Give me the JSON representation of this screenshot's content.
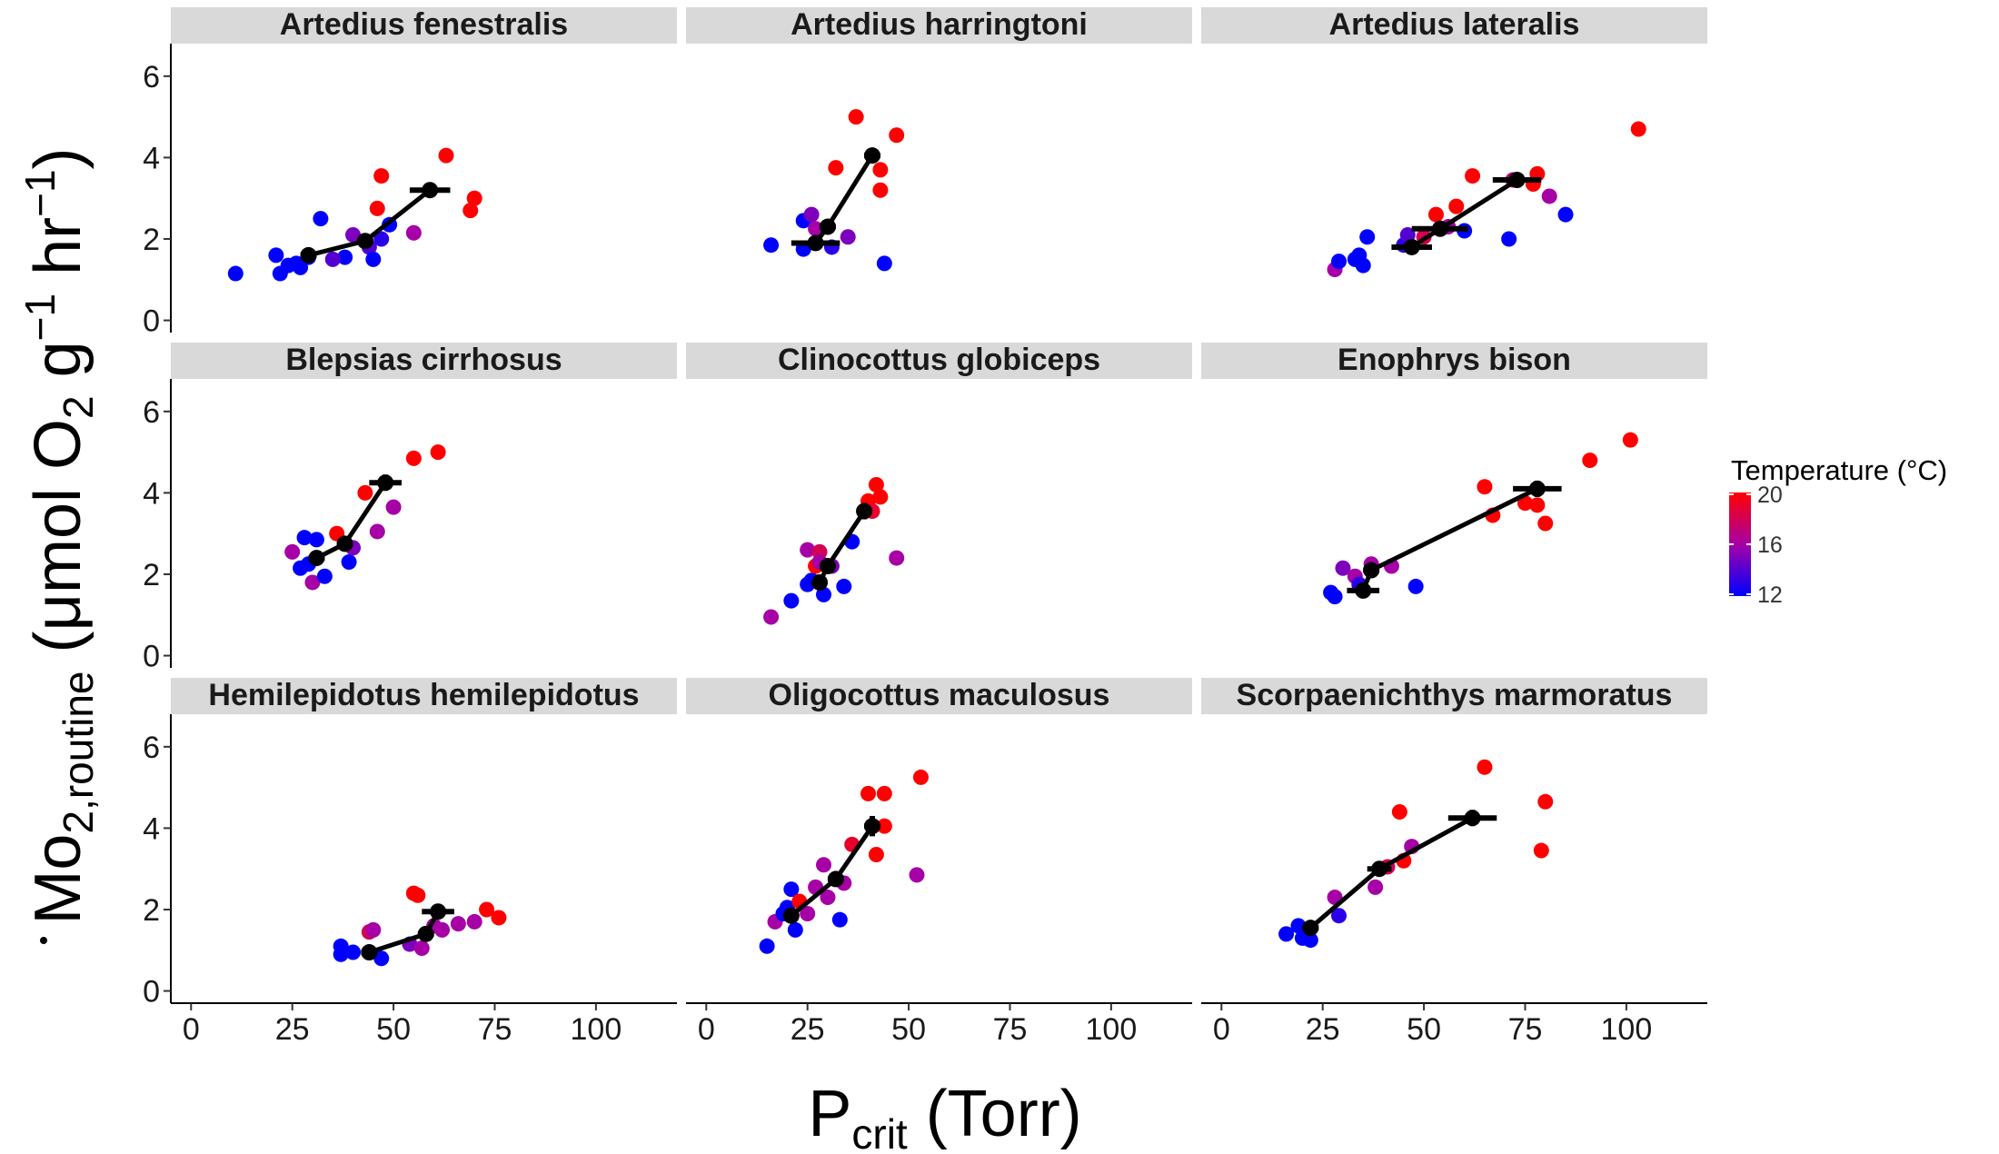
{
  "chart_data": {
    "type": "scatter",
    "facet_layout": "3x3",
    "xlabel_main": "P",
    "xlabel_sub": "crit",
    "xlabel_rest": " (Torr)",
    "ylabel_main": "Mo",
    "ylabel_sub": "2,routine",
    "ylabel_rest": " (μmol O",
    "ylabel_sub2": "2",
    "ylabel_rest2": " g",
    "ylabel_sup1": "−1",
    "ylabel_rest3": " hr",
    "ylabel_sup2": "−1",
    "ylabel_rest4": ")",
    "xlim": [
      -5,
      120
    ],
    "ylim": [
      -0.3,
      6.8
    ],
    "xticks": [
      0,
      25,
      50,
      75,
      100
    ],
    "yticks": [
      0,
      2,
      4,
      6
    ],
    "legend": {
      "title": "Temperature (°C)",
      "range": [
        12,
        20
      ],
      "ticks": [
        20,
        16,
        12
      ],
      "low_color": "#0000ff",
      "high_color": "#ff0000",
      "position": "right"
    },
    "colors": {
      "strip_bg": "#d9d9d9",
      "mean_marker": "#000000"
    },
    "panels": [
      {
        "name": "Artedius fenestralis",
        "points": [
          [
            11,
            1.15,
            12
          ],
          [
            21,
            1.6,
            12
          ],
          [
            22,
            1.15,
            12
          ],
          [
            24,
            1.35,
            12
          ],
          [
            26,
            1.4,
            12
          ],
          [
            27,
            1.3,
            12
          ],
          [
            29,
            1.55,
            12
          ],
          [
            32,
            2.5,
            12
          ],
          [
            38,
            1.55,
            12
          ],
          [
            35,
            1.5,
            14
          ],
          [
            40,
            2.1,
            15
          ],
          [
            44,
            1.8,
            14
          ],
          [
            45,
            1.5,
            12
          ],
          [
            47,
            2.0,
            13
          ],
          [
            49,
            2.35,
            12
          ],
          [
            46,
            2.75,
            20
          ],
          [
            47,
            3.55,
            20
          ],
          [
            55,
            2.15,
            16
          ],
          [
            63,
            4.05,
            20
          ],
          [
            69,
            2.7,
            20
          ],
          [
            70,
            3.0,
            20
          ]
        ],
        "means": [
          [
            29,
            1.6,
            2,
            0
          ],
          [
            43,
            1.95,
            2,
            0
          ],
          [
            59,
            3.2,
            5,
            0
          ]
        ]
      },
      {
        "name": "Artedius harringtoni",
        "points": [
          [
            16,
            1.85,
            12
          ],
          [
            24,
            1.75,
            12
          ],
          [
            24,
            2.45,
            12
          ],
          [
            26,
            2.6,
            15
          ],
          [
            27,
            2.25,
            16
          ],
          [
            30,
            2.3,
            14
          ],
          [
            31,
            1.8,
            13
          ],
          [
            32,
            3.75,
            20
          ],
          [
            35,
            2.05,
            15
          ],
          [
            37,
            5.0,
            20
          ],
          [
            43,
            3.7,
            20
          ],
          [
            43,
            3.2,
            20
          ],
          [
            44,
            1.4,
            12
          ],
          [
            47,
            4.55,
            20
          ]
        ],
        "means": [
          [
            27,
            1.9,
            6,
            0
          ],
          [
            30,
            2.3,
            2,
            0
          ],
          [
            41,
            4.05,
            2,
            0
          ]
        ]
      },
      {
        "name": "Artedius lateralis",
        "points": [
          [
            28,
            1.25,
            16
          ],
          [
            29,
            1.45,
            12
          ],
          [
            33,
            1.5,
            12
          ],
          [
            34,
            1.6,
            12
          ],
          [
            35,
            1.35,
            12
          ],
          [
            36,
            2.05,
            12
          ],
          [
            45,
            1.85,
            13
          ],
          [
            46,
            2.1,
            14
          ],
          [
            50,
            2.05,
            18
          ],
          [
            53,
            2.6,
            20
          ],
          [
            56,
            2.3,
            16
          ],
          [
            58,
            2.8,
            20
          ],
          [
            60,
            2.2,
            12
          ],
          [
            62,
            3.55,
            20
          ],
          [
            71,
            2.0,
            12
          ],
          [
            72,
            3.45,
            17
          ],
          [
            77,
            3.35,
            20
          ],
          [
            78,
            3.6,
            20
          ],
          [
            81,
            3.05,
            16
          ],
          [
            85,
            2.6,
            12
          ],
          [
            103,
            4.7,
            20
          ]
        ],
        "means": [
          [
            47,
            1.8,
            5,
            0
          ],
          [
            54,
            2.25,
            7,
            0
          ],
          [
            73,
            3.45,
            6,
            0
          ]
        ]
      },
      {
        "name": "Blepsias cirrhosus",
        "points": [
          [
            25,
            2.55,
            16
          ],
          [
            27,
            2.15,
            12
          ],
          [
            28,
            2.9,
            12
          ],
          [
            29,
            2.25,
            12
          ],
          [
            30,
            1.8,
            16
          ],
          [
            31,
            2.85,
            12
          ],
          [
            33,
            1.95,
            12
          ],
          [
            36,
            3.0,
            20
          ],
          [
            39,
            2.3,
            12
          ],
          [
            40,
            2.65,
            15
          ],
          [
            43,
            4.0,
            20
          ],
          [
            46,
            3.05,
            16
          ],
          [
            50,
            3.65,
            16
          ],
          [
            55,
            4.85,
            20
          ],
          [
            61,
            5.0,
            20
          ]
        ],
        "means": [
          [
            31,
            2.4,
            2,
            0
          ],
          [
            38,
            2.75,
            2,
            0
          ],
          [
            48,
            4.25,
            4,
            0.2
          ]
        ]
      },
      {
        "name": "Clinocottus globiceps",
        "points": [
          [
            16,
            0.95,
            16
          ],
          [
            21,
            1.35,
            12
          ],
          [
            25,
            1.75,
            12
          ],
          [
            25,
            2.6,
            16
          ],
          [
            26,
            1.85,
            12
          ],
          [
            27,
            2.2,
            20
          ],
          [
            28,
            2.55,
            18
          ],
          [
            28,
            2.3,
            16
          ],
          [
            29,
            1.5,
            12
          ],
          [
            31,
            2.2,
            15
          ],
          [
            34,
            1.7,
            12
          ],
          [
            36,
            2.8,
            12
          ],
          [
            40,
            3.8,
            20
          ],
          [
            41,
            3.55,
            19
          ],
          [
            42,
            4.2,
            20
          ],
          [
            43,
            3.9,
            20
          ],
          [
            47,
            2.4,
            16
          ]
        ],
        "means": [
          [
            28,
            1.8,
            1,
            0
          ],
          [
            30,
            2.2,
            2,
            0.15
          ],
          [
            39,
            3.55,
            1.5,
            0.2
          ]
        ]
      },
      {
        "name": "Enophrys bison",
        "points": [
          [
            27,
            1.55,
            12
          ],
          [
            28,
            1.45,
            12
          ],
          [
            30,
            2.15,
            15
          ],
          [
            33,
            1.95,
            16
          ],
          [
            34,
            1.75,
            13
          ],
          [
            37,
            2.25,
            16
          ],
          [
            42,
            2.2,
            16
          ],
          [
            48,
            1.7,
            12
          ],
          [
            65,
            4.15,
            20
          ],
          [
            67,
            3.45,
            20
          ],
          [
            75,
            3.75,
            20
          ],
          [
            78,
            3.7,
            20
          ],
          [
            80,
            3.25,
            20
          ],
          [
            91,
            4.8,
            20
          ],
          [
            101,
            5.3,
            20
          ]
        ],
        "means": [
          [
            35,
            1.6,
            4,
            0
          ],
          [
            37,
            2.1,
            2,
            0
          ],
          [
            78,
            4.1,
            6,
            0.2
          ]
        ]
      },
      {
        "name": "Hemilepidotus hemilepidotus",
        "points": [
          [
            37,
            0.9,
            12
          ],
          [
            37,
            1.1,
            12
          ],
          [
            40,
            0.95,
            12
          ],
          [
            44,
            1.45,
            18
          ],
          [
            45,
            1.5,
            16
          ],
          [
            47,
            0.8,
            12
          ],
          [
            54,
            1.15,
            15
          ],
          [
            55,
            2.4,
            20
          ],
          [
            56,
            2.35,
            20
          ],
          [
            57,
            1.05,
            16
          ],
          [
            58,
            1.4,
            17
          ],
          [
            60,
            1.6,
            16
          ],
          [
            62,
            1.5,
            16
          ],
          [
            66,
            1.65,
            16
          ],
          [
            70,
            1.7,
            16
          ],
          [
            73,
            2.0,
            20
          ],
          [
            76,
            1.8,
            20
          ]
        ],
        "means": [
          [
            44,
            0.95,
            2,
            0
          ],
          [
            58,
            1.4,
            2,
            0
          ],
          [
            61,
            1.95,
            4,
            0
          ]
        ]
      },
      {
        "name": "Oligocottus maculosus",
        "points": [
          [
            15,
            1.1,
            12
          ],
          [
            17,
            1.7,
            16
          ],
          [
            19,
            1.9,
            12
          ],
          [
            20,
            2.05,
            12
          ],
          [
            21,
            2.5,
            12
          ],
          [
            22,
            1.5,
            12
          ],
          [
            23,
            2.2,
            20
          ],
          [
            25,
            1.9,
            16
          ],
          [
            27,
            2.55,
            16
          ],
          [
            29,
            3.1,
            16
          ],
          [
            30,
            2.3,
            16
          ],
          [
            33,
            1.75,
            12
          ],
          [
            34,
            2.65,
            16
          ],
          [
            36,
            3.6,
            19
          ],
          [
            40,
            4.85,
            20
          ],
          [
            42,
            3.35,
            20
          ],
          [
            44,
            4.85,
            20
          ],
          [
            44,
            4.05,
            20
          ],
          [
            52,
            2.85,
            16
          ],
          [
            53,
            5.25,
            20
          ]
        ],
        "means": [
          [
            21,
            1.85,
            1,
            0
          ],
          [
            32,
            2.75,
            2,
            0
          ],
          [
            41,
            4.05,
            2,
            0.25
          ]
        ]
      },
      {
        "name": "Scorpaenichthys marmoratus",
        "points": [
          [
            16,
            1.4,
            12
          ],
          [
            19,
            1.6,
            12
          ],
          [
            20,
            1.3,
            12
          ],
          [
            22,
            1.25,
            12
          ],
          [
            28,
            2.3,
            16
          ],
          [
            29,
            1.85,
            13
          ],
          [
            38,
            2.55,
            16
          ],
          [
            41,
            3.05,
            18
          ],
          [
            44,
            4.4,
            20
          ],
          [
            45,
            3.2,
            20
          ],
          [
            47,
            3.55,
            16
          ],
          [
            65,
            5.5,
            20
          ],
          [
            79,
            3.45,
            20
          ],
          [
            80,
            4.65,
            20
          ]
        ],
        "means": [
          [
            22,
            1.55,
            2,
            0
          ],
          [
            39,
            3.0,
            3,
            0
          ],
          [
            62,
            4.25,
            6,
            0.2
          ]
        ]
      }
    ]
  }
}
